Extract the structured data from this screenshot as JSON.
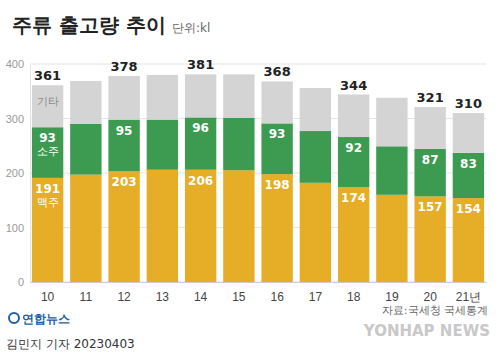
{
  "chart_data": {
    "type": "bar",
    "title": "주류 출고량 추이",
    "subtitle": "단위:kl",
    "categories": [
      "10",
      "11",
      "12",
      "13",
      "14",
      "15",
      "16",
      "17",
      "18",
      "19",
      "20",
      "21년"
    ],
    "series": [
      {
        "name": "맥주",
        "color": "#e6ad27",
        "values": [
          191,
          197,
          203,
          206,
          206,
          205,
          198,
          182,
          174,
          160,
          157,
          154
        ],
        "value_labels": [
          191,
          null,
          203,
          null,
          206,
          null,
          198,
          null,
          174,
          null,
          157,
          154
        ]
      },
      {
        "name": "소주",
        "color": "#3d9a51",
        "values": [
          93,
          93,
          95,
          92,
          96,
          96,
          93,
          95,
          92,
          89,
          87,
          83
        ],
        "value_labels": [
          93,
          null,
          95,
          null,
          96,
          null,
          93,
          null,
          92,
          null,
          87,
          83
        ]
      },
      {
        "name": "기타",
        "color": "#d4d4d4",
        "values": [
          77,
          79,
          80,
          82,
          79,
          80,
          77,
          79,
          78,
          89,
          77,
          73
        ]
      }
    ],
    "totals": [
      361,
      null,
      378,
      null,
      381,
      null,
      368,
      null,
      344,
      null,
      321,
      310
    ],
    "stacked": true,
    "data_labels": true,
    "ylim": [
      0,
      400
    ],
    "yticks": [
      0,
      100,
      200,
      300,
      400
    ],
    "grid": true,
    "annotations": [
      "자료:국세청 국세통계",
      "연합뉴스",
      "김민지 기자 20230403",
      "YONHAP NEWS"
    ]
  }
}
